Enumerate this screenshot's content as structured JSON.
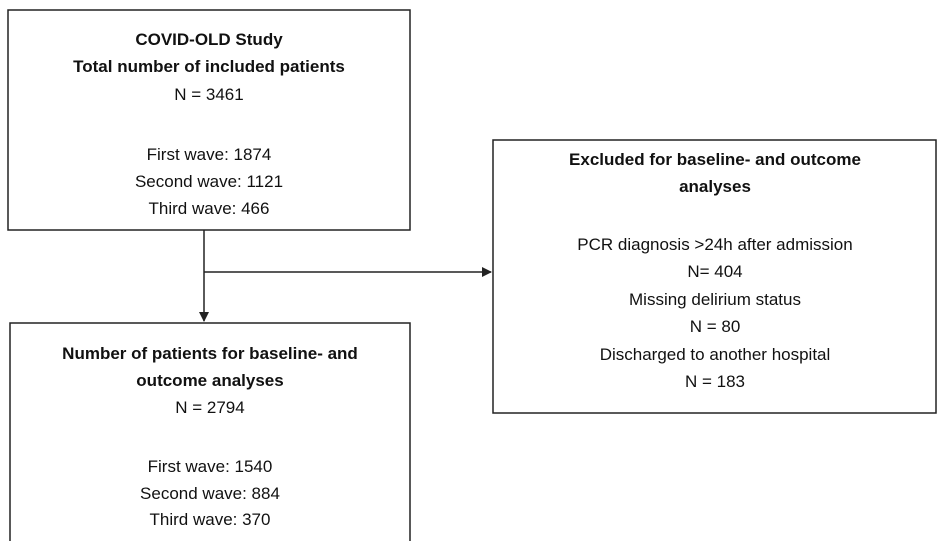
{
  "nodes": [
    {
      "title": [
        "COVID-OLD Study",
        "Total number of included patients"
      ],
      "lines": [
        "N = 3461",
        "First wave: 1874",
        "Second wave: 1121",
        "Third wave: 466"
      ]
    },
    {
      "title": [
        "Excluded for baseline- and outcome",
        "analyses"
      ],
      "lines": [
        "PCR diagnosis >24h after admission",
        "N= 404",
        "Missing delirium status",
        "N = 80",
        "Discharged to another hospital",
        "N = 183"
      ]
    },
    {
      "title": [
        "Number of patients for baseline- and",
        "outcome analyses"
      ],
      "lines": [
        "N = 2794",
        "First wave: 1540",
        "Second wave: 884",
        "Third wave: 370"
      ]
    }
  ]
}
